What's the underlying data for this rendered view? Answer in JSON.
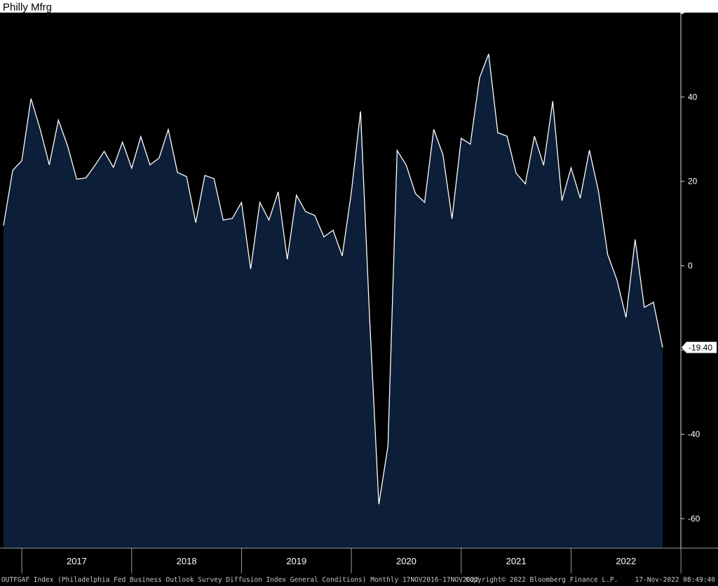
{
  "title": "Philly Mfrg",
  "footer": {
    "left": "OUTFGAF Index (Philadelphia Fed Business Outlook Survey Diffusion Index General Conditions) Monthly 17NOV2016-17NOV2022",
    "mid": "Copyright© 2022 Bloomberg Finance L.P.",
    "right": "17-Nov-2022 08:49:40"
  },
  "colors": {
    "background": "#000000",
    "fill": "#0c1e38",
    "line": "#ffffff",
    "text": "#ffffff"
  },
  "chart_data": {
    "type": "area",
    "ylim": [
      -67,
      60
    ],
    "yticks": [
      -60,
      -40,
      -20,
      0,
      20,
      40
    ],
    "ytick_labels": [
      "-60",
      "-40",
      "",
      "0",
      "20",
      "40"
    ],
    "year_labels": [
      "2017",
      "2018",
      "2019",
      "2020",
      "2021",
      "2022"
    ],
    "grid": false,
    "last_value_label": "-19.40",
    "last_value": -19.4,
    "x": [
      "2016-11",
      "2016-12",
      "2017-01",
      "2017-02",
      "2017-03",
      "2017-04",
      "2017-05",
      "2017-06",
      "2017-07",
      "2017-08",
      "2017-09",
      "2017-10",
      "2017-11",
      "2017-12",
      "2018-01",
      "2018-02",
      "2018-03",
      "2018-04",
      "2018-05",
      "2018-06",
      "2018-07",
      "2018-08",
      "2018-09",
      "2018-10",
      "2018-11",
      "2018-12",
      "2019-01",
      "2019-02",
      "2019-03",
      "2019-04",
      "2019-05",
      "2019-06",
      "2019-07",
      "2019-08",
      "2019-09",
      "2019-10",
      "2019-11",
      "2019-12",
      "2020-01",
      "2020-02",
      "2020-03",
      "2020-04",
      "2020-05",
      "2020-06",
      "2020-07",
      "2020-08",
      "2020-09",
      "2020-10",
      "2020-11",
      "2020-12",
      "2021-01",
      "2021-02",
      "2021-03",
      "2021-04",
      "2021-05",
      "2021-06",
      "2021-07",
      "2021-08",
      "2021-09",
      "2021-10",
      "2021-11",
      "2021-12",
      "2022-01",
      "2022-02",
      "2022-03",
      "2022-04",
      "2022-05",
      "2022-06",
      "2022-07",
      "2022-08",
      "2022-09",
      "2022-10",
      "2022-11"
    ],
    "y": [
      9.5,
      22.6,
      24.9,
      39.6,
      32.4,
      23.9,
      34.5,
      28.4,
      20.5,
      20.8,
      23.8,
      27.1,
      23.3,
      29.3,
      23.1,
      30.6,
      23.9,
      25.5,
      32.3,
      22.1,
      21.1,
      10.2,
      21.4,
      20.6,
      10.8,
      11.2,
      15.0,
      -0.8,
      15.0,
      10.8,
      17.5,
      1.5,
      16.7,
      12.8,
      11.9,
      6.8,
      8.4,
      2.3,
      17.4,
      36.6,
      -12.7,
      -56.6,
      -42.8,
      27.3,
      23.8,
      17.1,
      15.0,
      32.3,
      26.3,
      11.1,
      30.2,
      28.8,
      44.5,
      50.2,
      31.5,
      30.7,
      21.9,
      19.4,
      30.7,
      23.8,
      39.0,
      15.4,
      23.2,
      16.0,
      27.4,
      17.6,
      2.6,
      -3.3,
      -12.3,
      6.2,
      -9.9,
      -8.7,
      -19.4
    ]
  }
}
